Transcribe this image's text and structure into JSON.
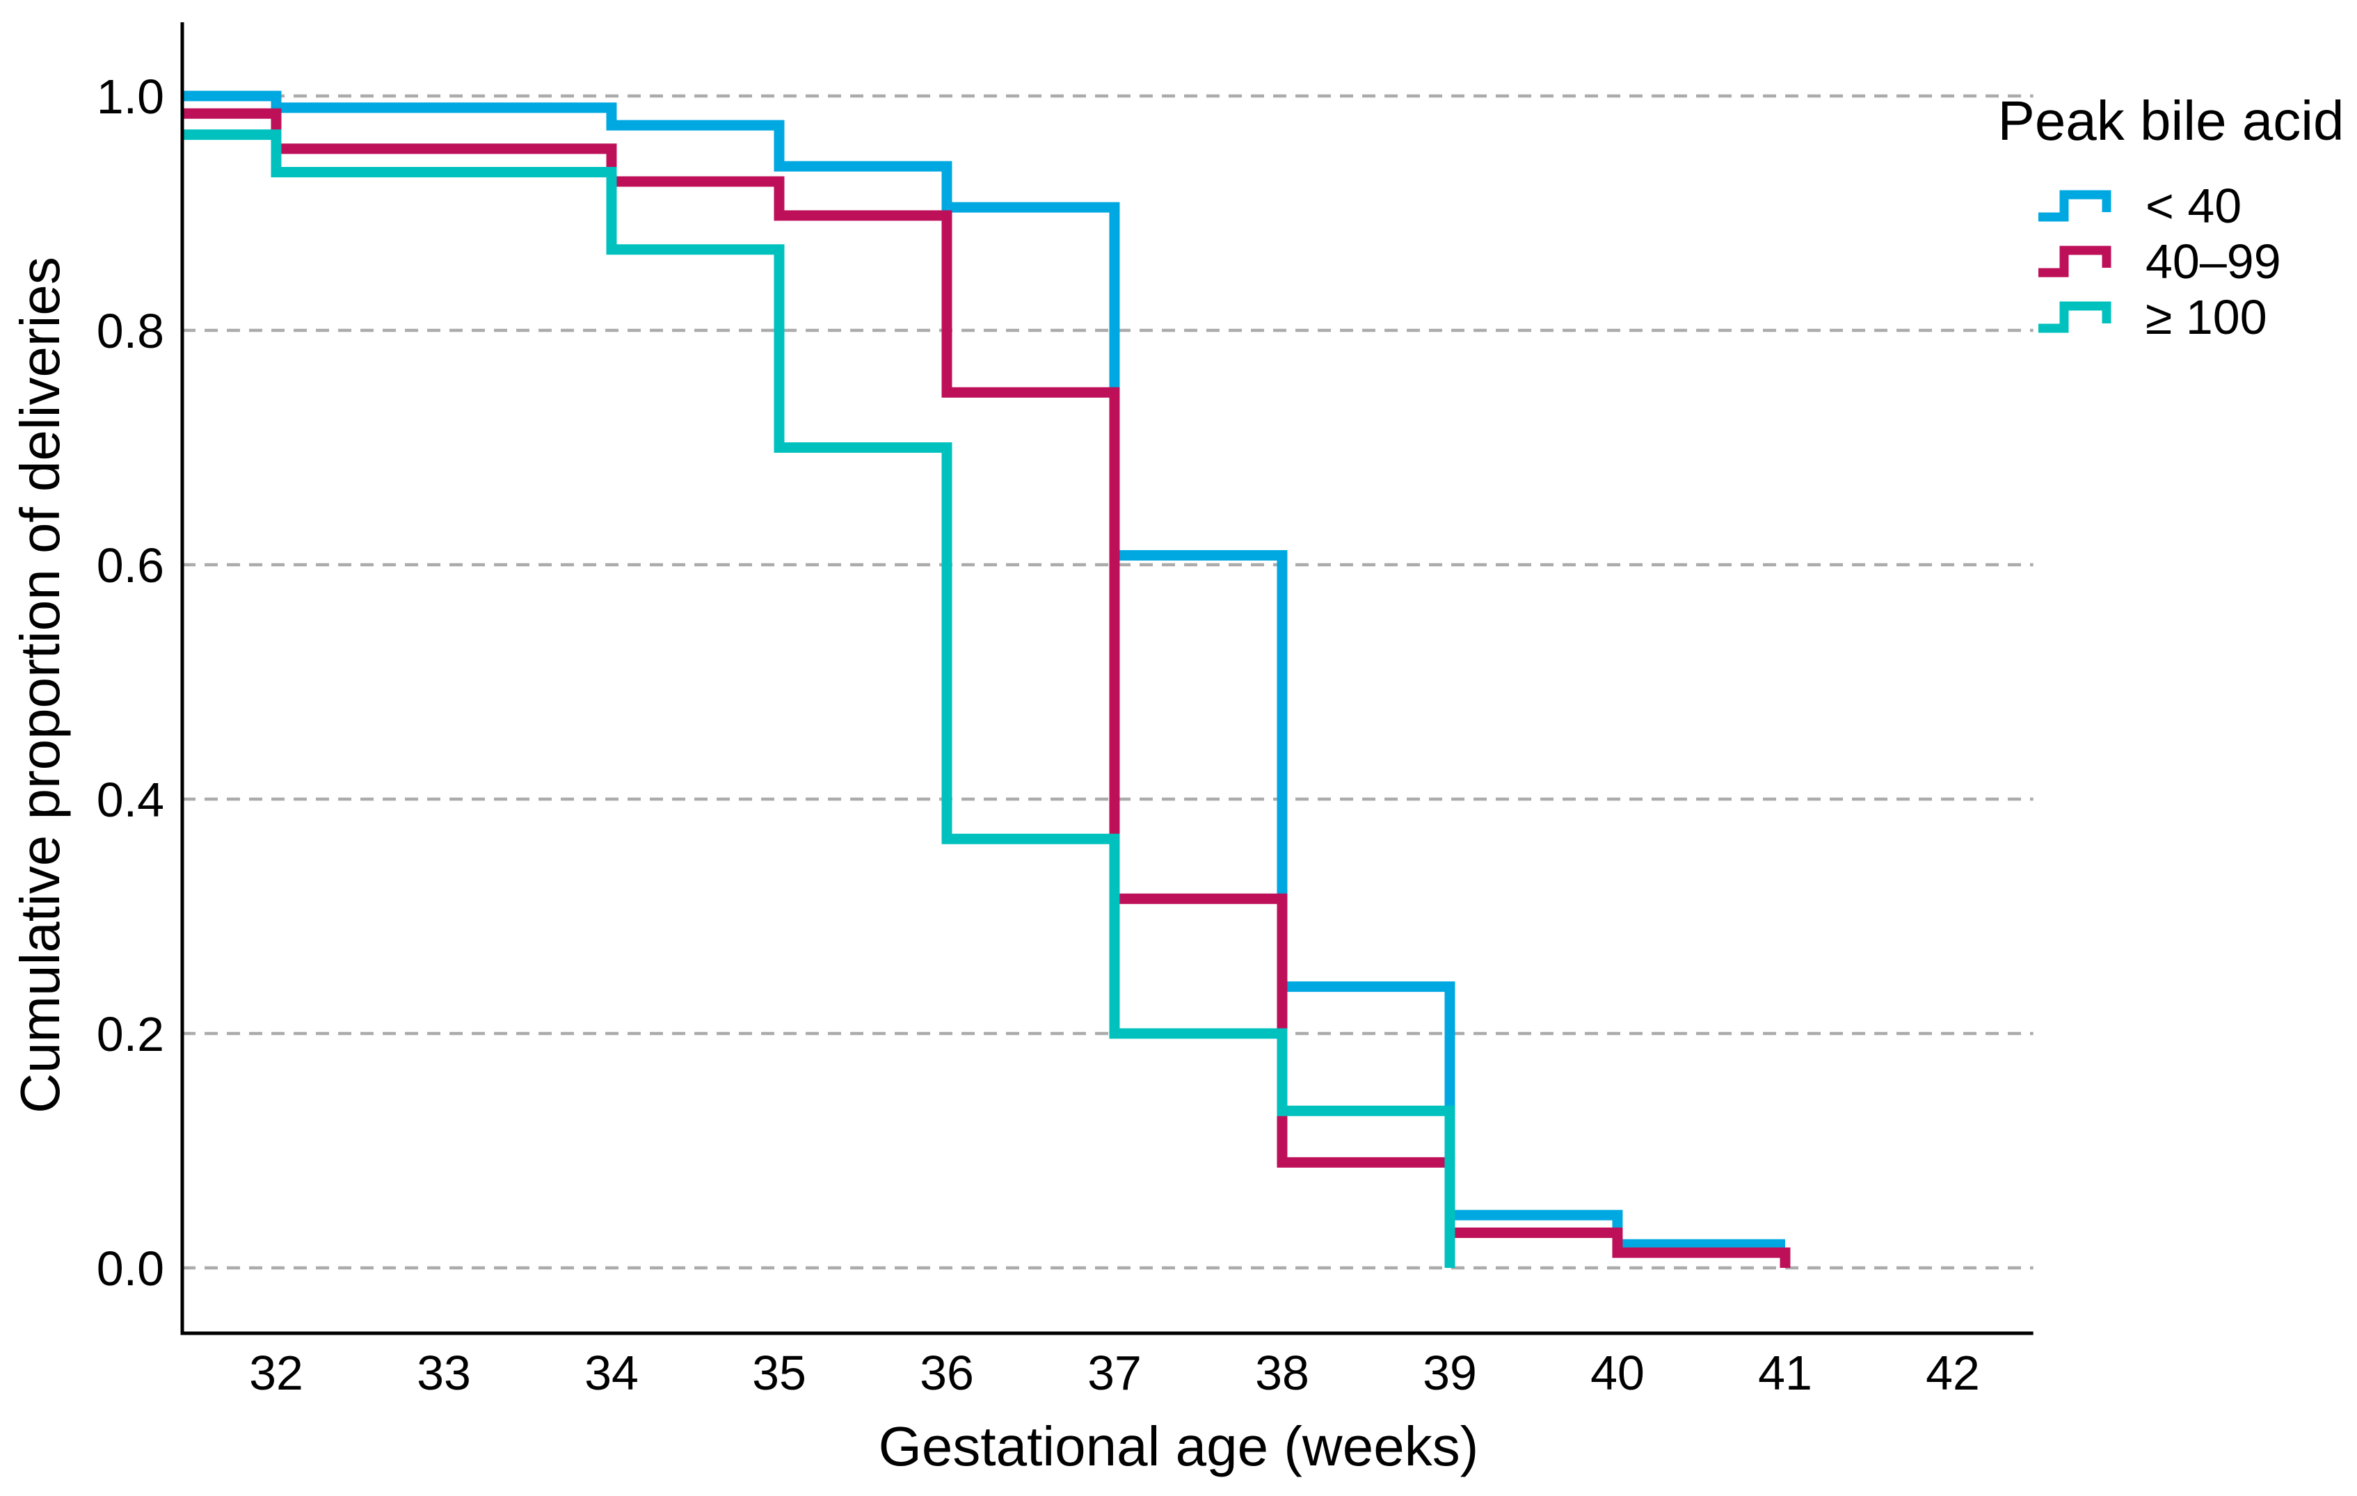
{
  "chart_data": {
    "type": "step",
    "title": "",
    "xlabel": "Gestational age (weeks)",
    "ylabel": "Cumulative proportion of deliveries",
    "legend_title": "Peak bile acid",
    "legend_position": "top-right",
    "grid": "horizontal dashed",
    "background": "#FFFFFF",
    "axis_color": "#000000",
    "grid_color": "#ABABAB",
    "xlim": [
      31.44,
      42.48
    ],
    "ylim": [
      0.0,
      1.0
    ],
    "x_ticks": [
      {
        "label": "32",
        "value": 32
      },
      {
        "label": "33",
        "value": 33
      },
      {
        "label": "34",
        "value": 34
      },
      {
        "label": "35",
        "value": 35
      },
      {
        "label": "36",
        "value": 36
      },
      {
        "label": "37",
        "value": 37
      },
      {
        "label": "38",
        "value": 38
      },
      {
        "label": "39",
        "value": 39
      },
      {
        "label": "40",
        "value": 40
      },
      {
        "label": "41",
        "value": 41
      },
      {
        "label": "42",
        "value": 42
      }
    ],
    "y_ticks": [
      {
        "label": "1.0",
        "value": 1.0
      },
      {
        "label": "0.8",
        "value": 0.8
      },
      {
        "label": "0.6",
        "value": 0.6
      },
      {
        "label": "0.4",
        "value": 0.4
      },
      {
        "label": "0.2",
        "value": 0.2
      },
      {
        "label": "0.0",
        "value": 0.0
      }
    ],
    "series": [
      {
        "name": "< 40",
        "color": "#00A8E1",
        "start_week": 31.44,
        "start_value": 1.0,
        "steps": [
          [
            32,
            0.99
          ],
          [
            34,
            0.975
          ],
          [
            35,
            0.94
          ],
          [
            36,
            0.905
          ],
          [
            37,
            0.608
          ],
          [
            38,
            0.24
          ],
          [
            39,
            0.045
          ],
          [
            40,
            0.02
          ]
        ],
        "end_week": 41,
        "drop_to_zero_at_end": false
      },
      {
        "name": "40–99",
        "color": "#BE1059",
        "start_week": 31.44,
        "start_value": 0.985,
        "steps": [
          [
            32,
            0.955
          ],
          [
            34,
            0.927
          ],
          [
            35,
            0.898
          ],
          [
            36,
            0.747
          ],
          [
            37,
            0.315
          ],
          [
            38,
            0.09
          ],
          [
            39,
            0.03
          ],
          [
            40,
            0.013
          ]
        ],
        "end_week": 41,
        "drop_to_zero_at_end": true
      },
      {
        "name": "≥ 100",
        "color": "#00C1BE",
        "start_week": 31.44,
        "start_value": 0.967,
        "steps": [
          [
            32,
            0.935
          ],
          [
            34,
            0.869
          ],
          [
            35,
            0.7
          ],
          [
            36,
            0.366
          ],
          [
            37,
            0.2
          ],
          [
            38,
            0.134
          ]
        ],
        "end_week": 39,
        "drop_to_zero_at_end": true
      }
    ]
  }
}
